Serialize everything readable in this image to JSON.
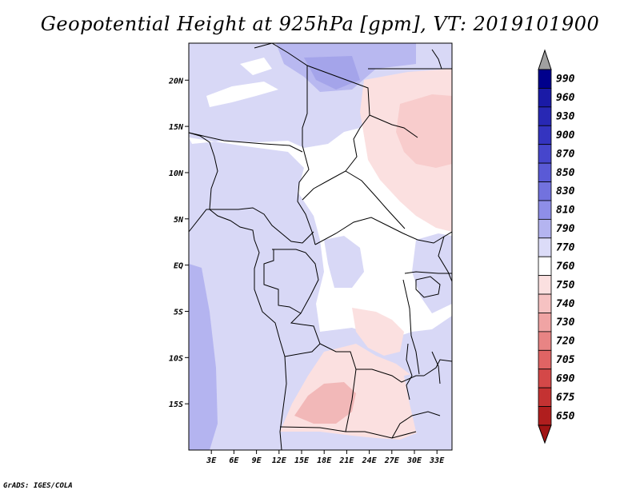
{
  "title": "Geopotential Height at 925hPa [gpm], VT: 2019101900",
  "credit": "GrADS: IGES/COLA",
  "map": {
    "lon_range": [
      0,
      35
    ],
    "lat_range": [
      -20,
      24
    ],
    "lat_ticks": [
      {
        "value": 20,
        "label": "20N"
      },
      {
        "value": 15,
        "label": "15N"
      },
      {
        "value": 10,
        "label": "10N"
      },
      {
        "value": 5,
        "label": "5N"
      },
      {
        "value": 0,
        "label": "EQ"
      },
      {
        "value": -5,
        "label": "5S"
      },
      {
        "value": -10,
        "label": "10S"
      },
      {
        "value": -15,
        "label": "15S"
      }
    ],
    "lon_ticks": [
      {
        "value": 3,
        "label": "3E"
      },
      {
        "value": 6,
        "label": "6E"
      },
      {
        "value": 9,
        "label": "9E"
      },
      {
        "value": 12,
        "label": "12E"
      },
      {
        "value": 15,
        "label": "15E"
      },
      {
        "value": 18,
        "label": "18E"
      },
      {
        "value": 21,
        "label": "21E"
      },
      {
        "value": 24,
        "label": "24E"
      },
      {
        "value": 27,
        "label": "27E"
      },
      {
        "value": 30,
        "label": "30E"
      },
      {
        "value": 33,
        "label": "33E"
      }
    ]
  },
  "colorbar": {
    "levels": [
      {
        "label": "990",
        "color": "#00008c"
      },
      {
        "label": "960",
        "color": "#1a1aa6"
      },
      {
        "label": "930",
        "color": "#2828b4"
      },
      {
        "label": "900",
        "color": "#3434c0"
      },
      {
        "label": "870",
        "color": "#4646cc"
      },
      {
        "label": "850",
        "color": "#5a5ad6"
      },
      {
        "label": "830",
        "color": "#7272de"
      },
      {
        "label": "810",
        "color": "#8e8ee8"
      },
      {
        "label": "790",
        "color": "#b4b4f0"
      },
      {
        "label": "770",
        "color": "#dcdcf8"
      },
      {
        "label": "760",
        "color": "#ffffff"
      },
      {
        "label": "750",
        "color": "#fbe0e0"
      },
      {
        "label": "740",
        "color": "#f6c2c2"
      },
      {
        "label": "730",
        "color": "#f0a4a4"
      },
      {
        "label": "720",
        "color": "#e88484"
      },
      {
        "label": "705",
        "color": "#e06464"
      },
      {
        "label": "690",
        "color": "#d44848"
      },
      {
        "label": "675",
        "color": "#c43232"
      },
      {
        "label": "650",
        "color": "#b01e1e"
      }
    ],
    "top_arrow_color": "#a0a0a0",
    "bottom_arrow_color": "#a01414"
  }
}
